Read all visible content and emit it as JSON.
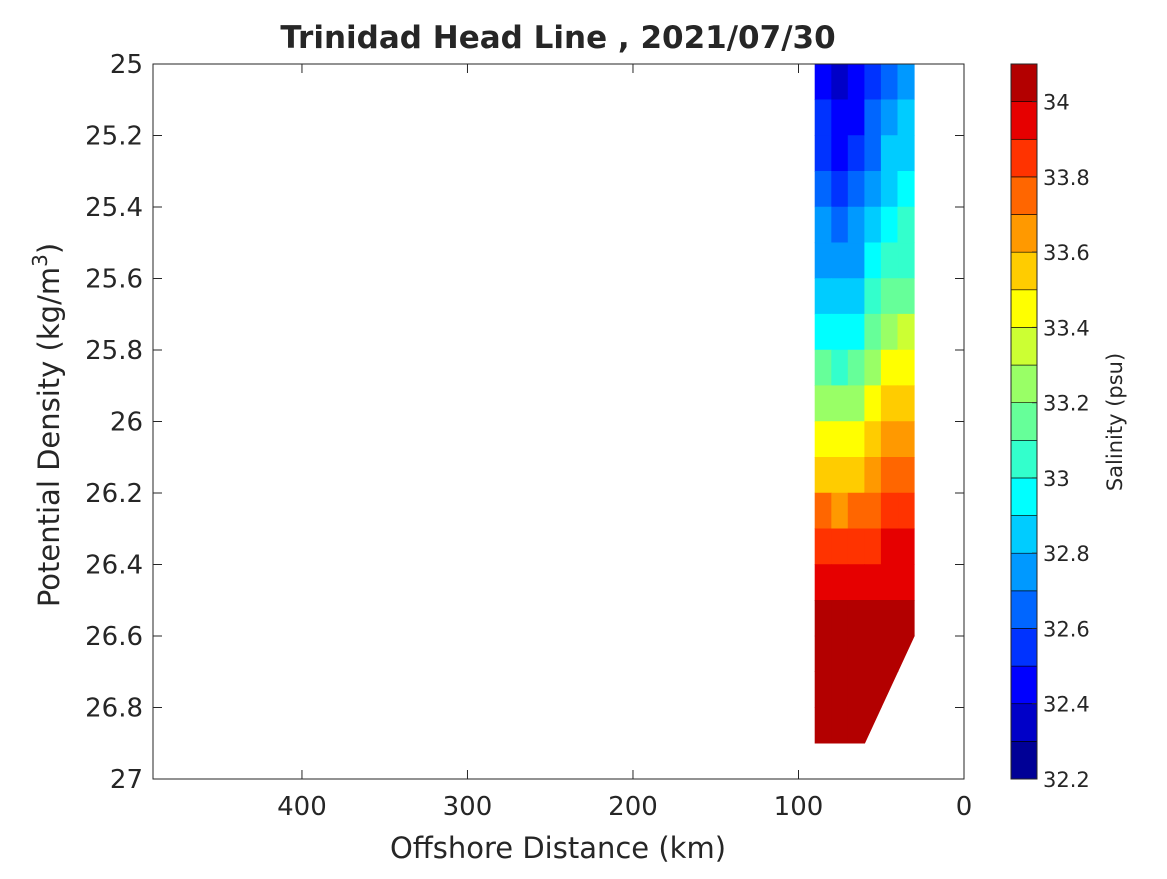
{
  "chart_data": {
    "type": "contour",
    "title": "Trinidad Head Line , 2021/07/30",
    "xlabel": "Offshore Distance (km)",
    "ylabel_text": "Potential Density (kg/m",
    "ylabel_sup": "3",
    "ylabel_close": ")",
    "colorbar_label": "Salinity (psu)",
    "x_axis": {
      "reversed": true,
      "xlim": [
        490,
        0
      ],
      "ticks": [
        400,
        300,
        200,
        100,
        0
      ]
    },
    "y_axis": {
      "reversed": true,
      "ylim": [
        25,
        27
      ],
      "ticks": [
        "25",
        "25.2",
        "25.4",
        "25.6",
        "25.8",
        "26",
        "26.2",
        "26.4",
        "26.6",
        "26.8",
        "27"
      ]
    },
    "colorbar": {
      "range": [
        32.2,
        34.1
      ],
      "ticks": [
        "32.2",
        "32.4",
        "32.6",
        "32.8",
        "33",
        "33.2",
        "33.4",
        "33.6",
        "33.8",
        "34"
      ],
      "levels": [
        32.2,
        32.3,
        32.4,
        32.5,
        32.6,
        32.7,
        32.8,
        32.9,
        33.0,
        33.1,
        33.2,
        33.3,
        33.4,
        33.5,
        33.6,
        33.7,
        33.8,
        33.9,
        34.0,
        34.1
      ],
      "colors": [
        "#000096",
        "#0000c8",
        "#0000ff",
        "#0033ff",
        "#0066ff",
        "#0099ff",
        "#00ccff",
        "#00ffff",
        "#33ffcc",
        "#66ff99",
        "#99ff66",
        "#ccff33",
        "#ffff00",
        "#ffcc00",
        "#ff9900",
        "#ff6600",
        "#ff3300",
        "#e60000",
        "#b30000"
      ]
    },
    "grid": false,
    "data_extent": {
      "x_range_km": [
        30,
        90
      ],
      "density_range": [
        25,
        26.9
      ]
    },
    "stations_km": [
      90,
      80,
      70,
      60,
      50,
      40,
      30
    ],
    "density_levels": [
      25.0,
      25.1,
      25.2,
      25.3,
      25.4,
      25.5,
      25.6,
      25.7,
      25.8,
      25.9,
      26.0,
      26.1,
      26.2,
      26.3,
      26.4,
      26.5,
      26.6,
      26.7,
      26.8,
      26.9
    ],
    "bottom_density": [
      26.9,
      26.9,
      26.9,
      26.9,
      26.8,
      26.7,
      26.6
    ],
    "salinity": [
      [
        32.45,
        32.42,
        32.3,
        32.45,
        32.6,
        32.68,
        32.72
      ],
      [
        32.5,
        32.45,
        32.35,
        32.5,
        32.65,
        32.75,
        32.78
      ],
      [
        32.55,
        32.5,
        32.4,
        32.58,
        32.72,
        32.82,
        32.85
      ],
      [
        32.62,
        32.57,
        32.5,
        32.68,
        32.8,
        32.9,
        32.92
      ],
      [
        32.68,
        32.65,
        32.6,
        32.75,
        32.88,
        32.96,
        32.98
      ],
      [
        32.75,
        32.72,
        32.68,
        32.82,
        32.95,
        33.02,
        33.05
      ],
      [
        32.82,
        32.8,
        32.76,
        32.9,
        33.05,
        33.12,
        33.14
      ],
      [
        32.92,
        32.9,
        32.86,
        33.0,
        33.18,
        33.25,
        33.27
      ],
      [
        33.05,
        33.03,
        33.0,
        33.12,
        33.3,
        33.38,
        33.4
      ],
      [
        33.2,
        33.18,
        33.15,
        33.25,
        33.42,
        33.5,
        33.52
      ],
      [
        33.38,
        33.35,
        33.33,
        33.4,
        33.55,
        33.62,
        33.64
      ],
      [
        33.52,
        33.5,
        33.48,
        33.55,
        33.66,
        33.72,
        33.73
      ],
      [
        33.66,
        33.64,
        33.62,
        33.67,
        33.75,
        33.8,
        33.81
      ],
      [
        33.79,
        33.77,
        33.76,
        33.8,
        33.85,
        33.88,
        33.88
      ],
      [
        33.9,
        33.89,
        33.88,
        33.91,
        33.94,
        33.96,
        33.96
      ],
      [
        33.98,
        33.98,
        33.97,
        33.99,
        34.0,
        34.01,
        34.02
      ],
      [
        34.05,
        34.06,
        34.07,
        34.1,
        34.12,
        34.12,
        34.13
      ],
      [
        34.08,
        34.1,
        34.13,
        34.14,
        34.15,
        34.15,
        34.15
      ],
      [
        34.12,
        34.14,
        34.16,
        34.17,
        34.17,
        34.17,
        34.17
      ],
      [
        34.13,
        34.17,
        34.21,
        34.19,
        34.18,
        34.18,
        34.18
      ]
    ]
  }
}
